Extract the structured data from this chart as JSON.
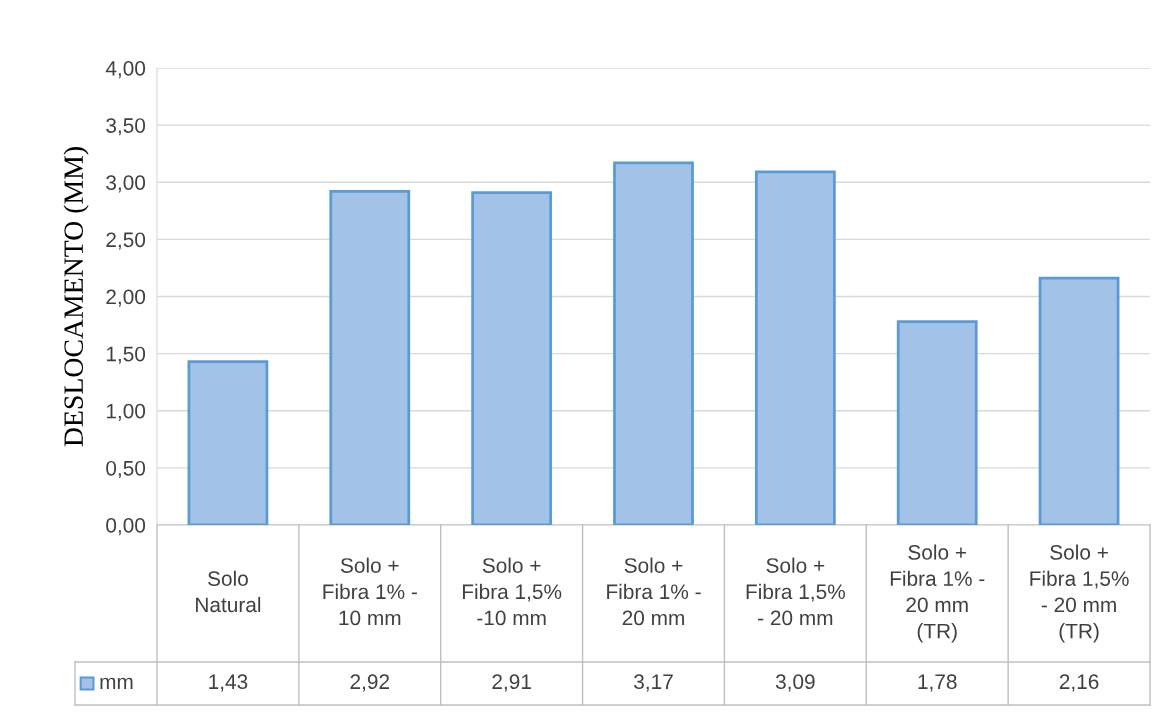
{
  "chart_data": {
    "type": "bar",
    "ylabel": "DESLOCAMENTO (MM)",
    "categories": [
      "Solo\nNatural",
      "Solo +\nFibra 1% -\n10 mm",
      "Solo +\nFibra 1,5%\n-10 mm",
      "Solo +\nFibra 1% -\n20 mm",
      "Solo +\nFibra 1,5%\n- 20 mm",
      "Solo +\nFibra 1% -\n20 mm\n(TR)",
      "Solo +\nFibra 1,5%\n- 20 mm\n(TR)"
    ],
    "series": [
      {
        "name": "mm",
        "color": "#a3c2e8",
        "values": [
          1.43,
          2.92,
          2.91,
          3.17,
          3.09,
          1.78,
          2.16
        ],
        "value_labels": [
          "1,43",
          "2,92",
          "2,91",
          "3,17",
          "3,09",
          "1,78",
          "2,16"
        ]
      }
    ],
    "ylim": [
      0,
      4
    ],
    "yticks": [
      {
        "value": 0,
        "label": "0,00"
      },
      {
        "value": 0.5,
        "label": "0,50"
      },
      {
        "value": 1,
        "label": "1,00"
      },
      {
        "value": 1.5,
        "label": "1,50"
      },
      {
        "value": 2,
        "label": "2,00"
      },
      {
        "value": 2.5,
        "label": "2,50"
      },
      {
        "value": 3,
        "label": "3,00"
      },
      {
        "value": 3.5,
        "label": "3,50"
      },
      {
        "value": 4,
        "label": "4,00"
      }
    ],
    "grid": "y",
    "legend": "bottom"
  }
}
